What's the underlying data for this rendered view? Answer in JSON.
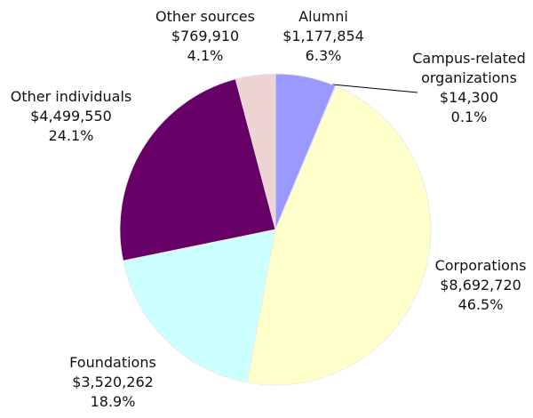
{
  "chart_data": {
    "type": "pie",
    "categories": [
      "Alumni",
      "Campus-related organizations",
      "Corporations",
      "Foundations",
      "Other individuals",
      "Other sources"
    ],
    "values": [
      1177854,
      14300,
      8692720,
      3520262,
      4499550,
      769910
    ],
    "value_labels": [
      "$1,177,854",
      "$14,300",
      "$8,692,720",
      "$3,520,262",
      "$4,499,550",
      "$769,910"
    ],
    "percent_labels": [
      "6.3%",
      "0.1%",
      "46.5%",
      "18.9%",
      "24.1%",
      "4.1%"
    ],
    "colors": [
      "#9999ff",
      "#333366",
      "#ffffcc",
      "#ccffff",
      "#660066",
      "#eed3d3"
    ]
  }
}
